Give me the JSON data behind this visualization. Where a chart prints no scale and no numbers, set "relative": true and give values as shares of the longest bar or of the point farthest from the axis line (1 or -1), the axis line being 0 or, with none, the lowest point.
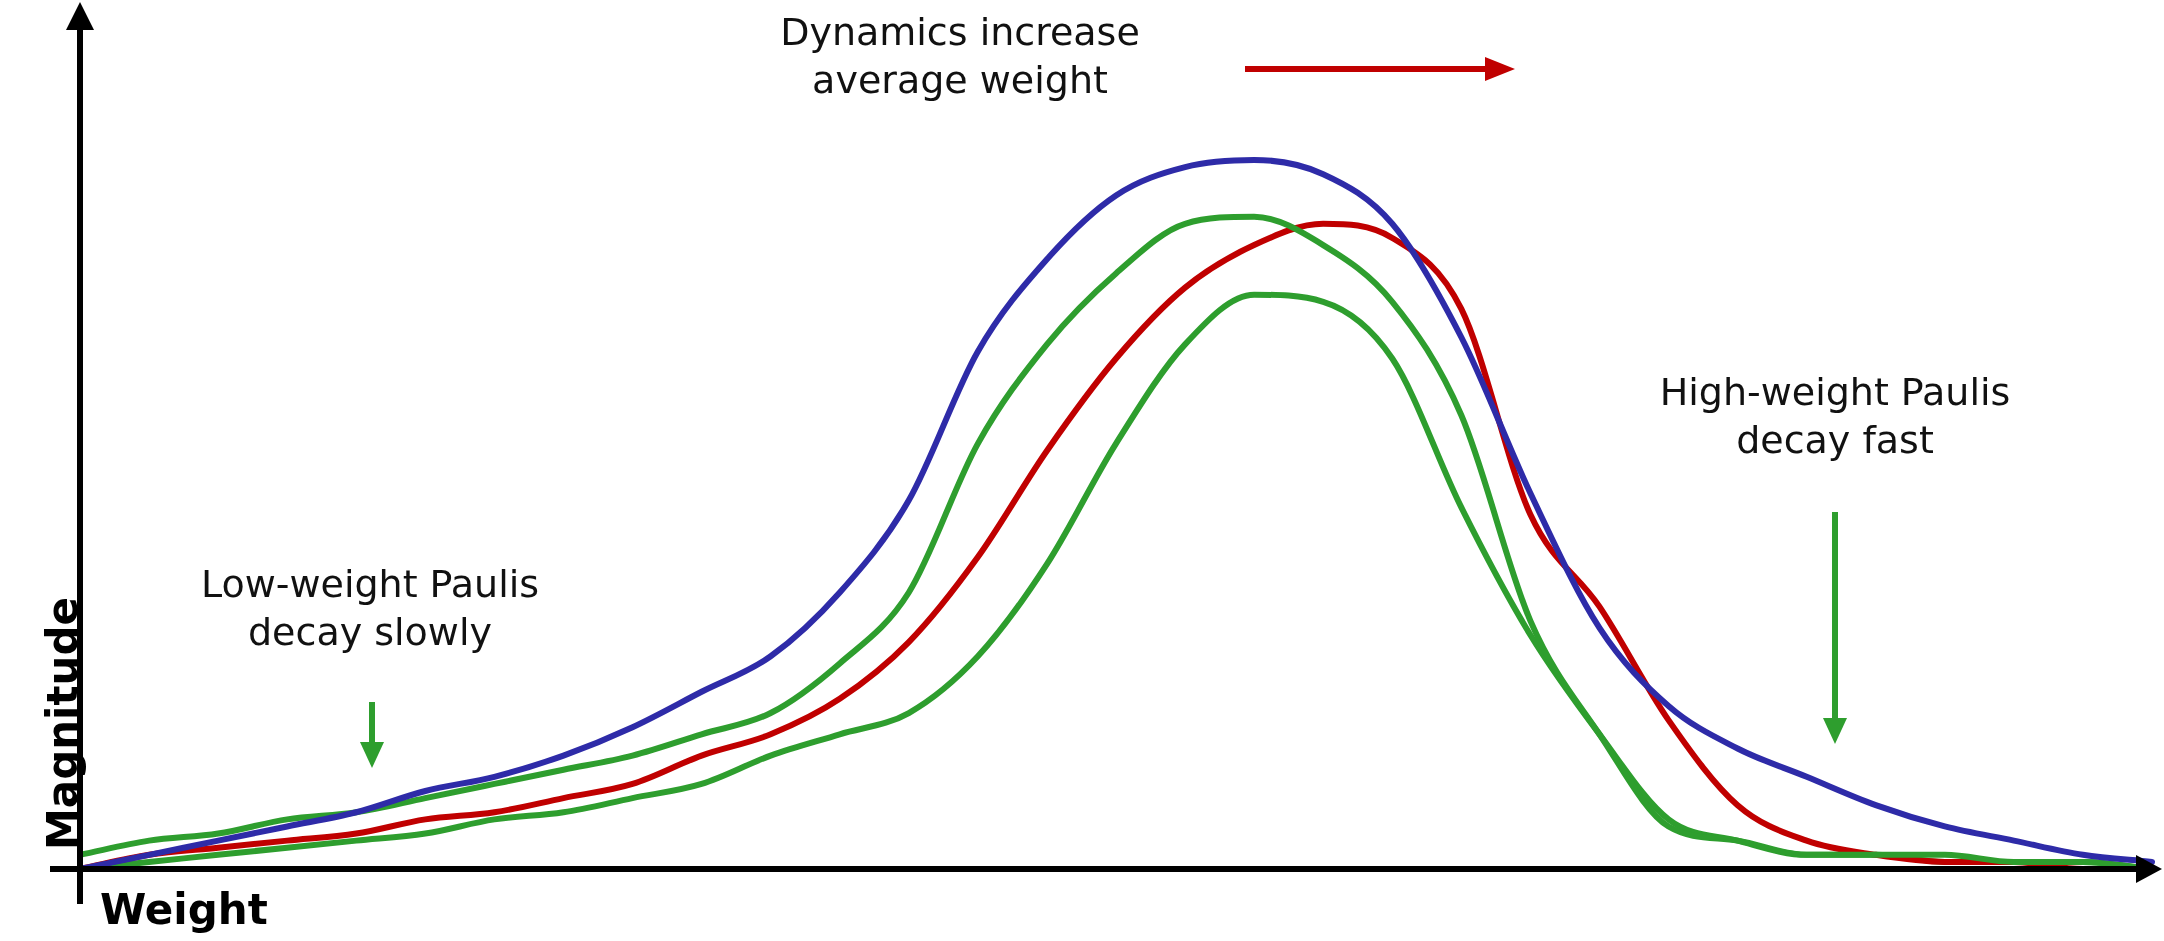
{
  "chart_data": {
    "type": "line",
    "relative": true,
    "xlabel": "Weight",
    "ylabel": "Magnitude",
    "marker": "none",
    "legend": false,
    "categories": [
      null,
      null,
      null,
      null,
      null,
      null,
      null,
      null,
      null,
      null,
      null,
      null,
      null,
      null,
      null,
      null,
      null,
      null,
      null,
      null,
      null,
      null,
      null,
      null,
      null,
      null,
      null,
      null,
      null,
      null,
      null
    ],
    "series": [
      {
        "color": "#2e2ba8",
        "values": [
          0.0,
          0.02,
          0.04,
          0.06,
          0.08,
          0.11,
          0.13,
          0.16,
          0.2,
          0.25,
          0.3,
          0.39,
          0.52,
          0.73,
          0.86,
          0.95,
          0.99,
          1.0,
          0.98,
          0.91,
          0.75,
          0.53,
          0.34,
          0.23,
          0.17,
          0.13,
          0.09,
          0.06,
          0.04,
          0.02,
          0.01
        ]
      },
      {
        "color": "#2e9e2e",
        "values": [
          0.02,
          0.04,
          0.05,
          0.07,
          0.08,
          0.1,
          0.12,
          0.14,
          0.16,
          0.19,
          0.22,
          0.29,
          0.39,
          0.6,
          0.74,
          0.84,
          0.91,
          0.92,
          0.88,
          0.8,
          0.64,
          0.35,
          0.19,
          0.06,
          0.04,
          0.02,
          0.02,
          0.02,
          0.01,
          0.01,
          0.0
        ]
      },
      {
        "color": "#c00000",
        "values": [
          0.0,
          0.02,
          0.03,
          0.04,
          0.05,
          0.07,
          0.08,
          0.1,
          0.12,
          0.16,
          0.19,
          0.24,
          0.32,
          0.44,
          0.59,
          0.72,
          0.82,
          0.88,
          0.91,
          0.89,
          0.79,
          0.5,
          0.37,
          0.21,
          0.09,
          0.04,
          0.02,
          0.01,
          0.01,
          0.0,
          0.0
        ]
      },
      {
        "color": "#2e9e2e",
        "values": [
          0.0,
          0.01,
          0.02,
          0.03,
          0.04,
          0.05,
          0.07,
          0.08,
          0.1,
          0.12,
          0.16,
          0.19,
          0.22,
          0.3,
          0.43,
          0.6,
          0.74,
          0.81,
          0.8,
          0.72,
          0.51,
          0.33,
          0.19,
          0.07,
          0.04,
          0.02,
          0.02,
          0.01,
          0.01,
          0.01,
          0.0
        ]
      }
    ],
    "annotations": [
      "Dynamics increase average weight",
      "Low-weight Paulis decay slowly",
      "High-weight Paulis decay fast"
    ]
  }
}
